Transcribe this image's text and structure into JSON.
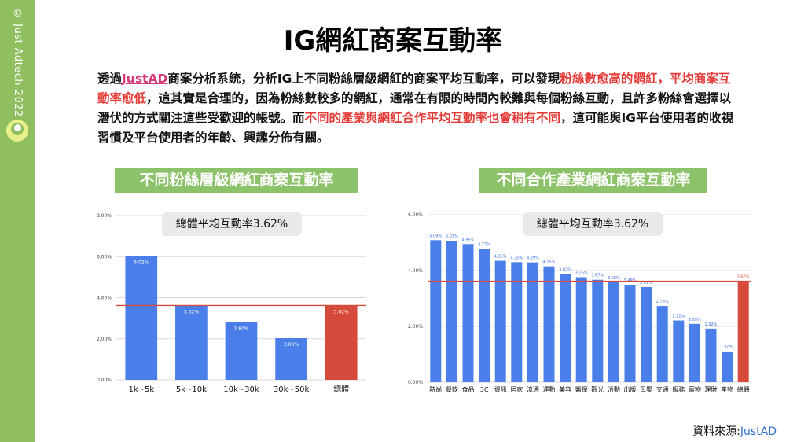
{
  "sidebar": {
    "copyright": "© Just Adtech 2022",
    "colors": {
      "bar": "#8fbf5f",
      "logo": "#e8f08a"
    }
  },
  "page": {
    "title": "IG網紅商案互動率"
  },
  "intro": {
    "part1": "透過",
    "brand": "JustAD",
    "part2": "商案分析系統，分析IG上不同粉絲層級網紅的商案平均互動率，可以發現",
    "highlight1": "粉絲數愈高的網紅，平均商案互動率愈低",
    "part3": "，這其實是合理的，因為粉絲數較多的網紅，通常在有限的時間內較難與每個粉絲互動，且許多粉絲會選擇以潛伏的方式關注這些受歡迎的帳號。而",
    "highlight2": "不同的產業與網紅合作平均互動率也會稍有不同",
    "part4": "，這可能與IG平台使用者的收視習慣及平台使用者的年齡、興趣分佈有關。"
  },
  "chart_data": [
    {
      "type": "bar",
      "title": "不同粉絲層級網紅商案互動率",
      "annotation": "總體平均互動率3.62%",
      "categories": [
        "1k~5k",
        "5k~10k",
        "10k~30k",
        "30k~50k",
        "總體"
      ],
      "values": [
        6.02,
        3.62,
        2.8,
        2.03,
        3.62
      ],
      "value_labels": [
        "6.02%",
        "3.62%",
        "2.80%",
        "2.03%",
        "3.62%"
      ],
      "ylim": [
        0,
        8
      ],
      "yticks": [
        "0.00%",
        "2.00%",
        "4.00%",
        "6.00%",
        "8.00%"
      ],
      "ytick_values": [
        0,
        2,
        4,
        6,
        8
      ],
      "average_line": 3.62,
      "colors": {
        "bar": "#4a7ee8",
        "highlight": "#d64a3b",
        "avg_line": "#d64a3b"
      },
      "highlight_index": 4,
      "grid": true
    },
    {
      "type": "bar",
      "title": "不同合作產業網紅商案互動率",
      "annotation": "總體平均互動率3.62%",
      "categories": [
        "時尚",
        "餐飲",
        "食品",
        "3C",
        "資訊",
        "居家",
        "流通",
        "運動",
        "美容",
        "醫保",
        "觀光",
        "活動",
        "出版",
        "母嬰",
        "交通",
        "服務",
        "寵物",
        "理財",
        "產物",
        "總體"
      ],
      "values": [
        5.09,
        5.07,
        4.95,
        4.77,
        4.35,
        4.3,
        4.29,
        4.15,
        3.87,
        3.76,
        3.67,
        3.58,
        3.49,
        3.41,
        2.73,
        2.21,
        2.09,
        1.92,
        1.1,
        3.62
      ],
      "value_labels": [
        "5.09%",
        "5.07%",
        "4.95%",
        "4.77%",
        "4.35%",
        "4.30%",
        "4.29%",
        "4.15%",
        "3.87%",
        "3.76%",
        "3.67%",
        "3.58%",
        "3.49%",
        "3.41%",
        "2.73%",
        "2.21%",
        "2.09%",
        "1.92%",
        "1.10%",
        "3.62%"
      ],
      "ylim": [
        0,
        6
      ],
      "yticks": [
        "0.00%",
        "2.00%",
        "4.00%",
        "6.00%"
      ],
      "ytick_values": [
        0,
        2,
        4,
        6
      ],
      "average_line": 3.62,
      "colors": {
        "bar": "#4a7ee8",
        "highlight": "#d64a3b",
        "avg_line": "#d64a3b"
      },
      "highlight_index": 19,
      "grid": true
    }
  ],
  "source": {
    "label": "資料來源:",
    "link": "JustAD"
  }
}
